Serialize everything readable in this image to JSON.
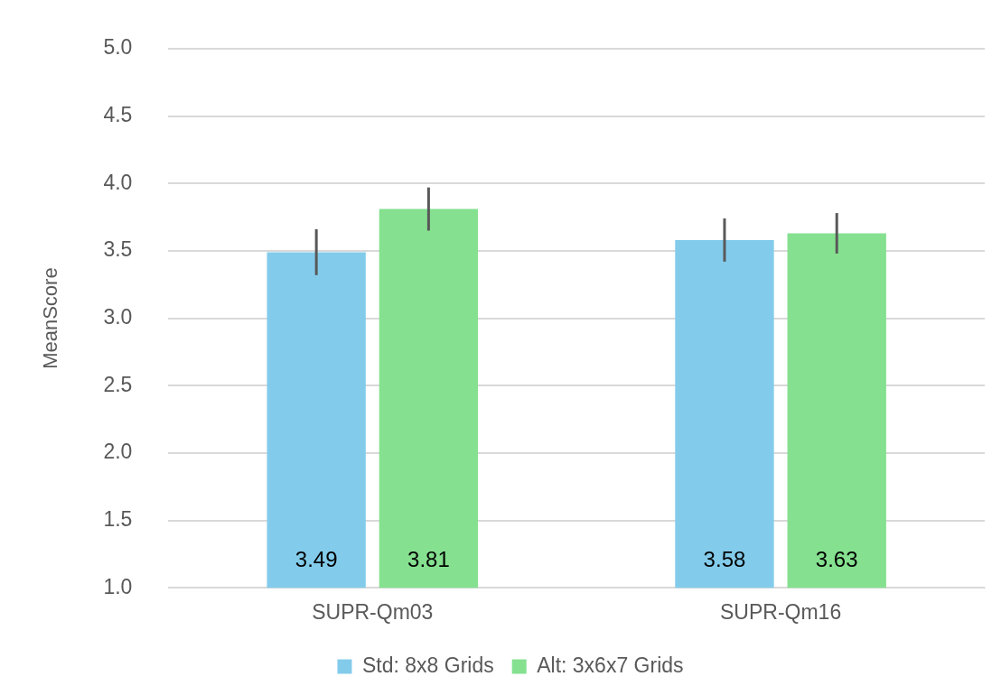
{
  "chart_data": {
    "type": "bar",
    "ylabel": "MeanScore",
    "categories": [
      "SUPR-Qm03",
      "SUPR-Qm16"
    ],
    "series": [
      {
        "name": "Std: 8x8 Grids",
        "color": "#83cbeb",
        "values": [
          3.49,
          3.58
        ],
        "errors": [
          0.17,
          0.16
        ]
      },
      {
        "name": "Alt: 3x6x7 Grids",
        "color": "#85e08f",
        "values": [
          3.81,
          3.63
        ],
        "errors": [
          0.16,
          0.15
        ]
      }
    ],
    "ylim": [
      1.0,
      5.0
    ],
    "yticks": [
      {
        "value": 1,
        "label": "1.0"
      },
      {
        "value": 1.5,
        "label": "1.5"
      },
      {
        "value": 2,
        "label": "2.0"
      },
      {
        "value": 2.5,
        "label": "2.5"
      },
      {
        "value": 3,
        "label": "3.0"
      },
      {
        "value": 3.5,
        "label": "3.5"
      },
      {
        "value": 4,
        "label": "4.0"
      },
      {
        "value": 4.5,
        "label": "4.5"
      },
      {
        "value": 5,
        "label": "5.0"
      }
    ],
    "grid": "y",
    "legend": "bottom",
    "data_labels": true
  }
}
